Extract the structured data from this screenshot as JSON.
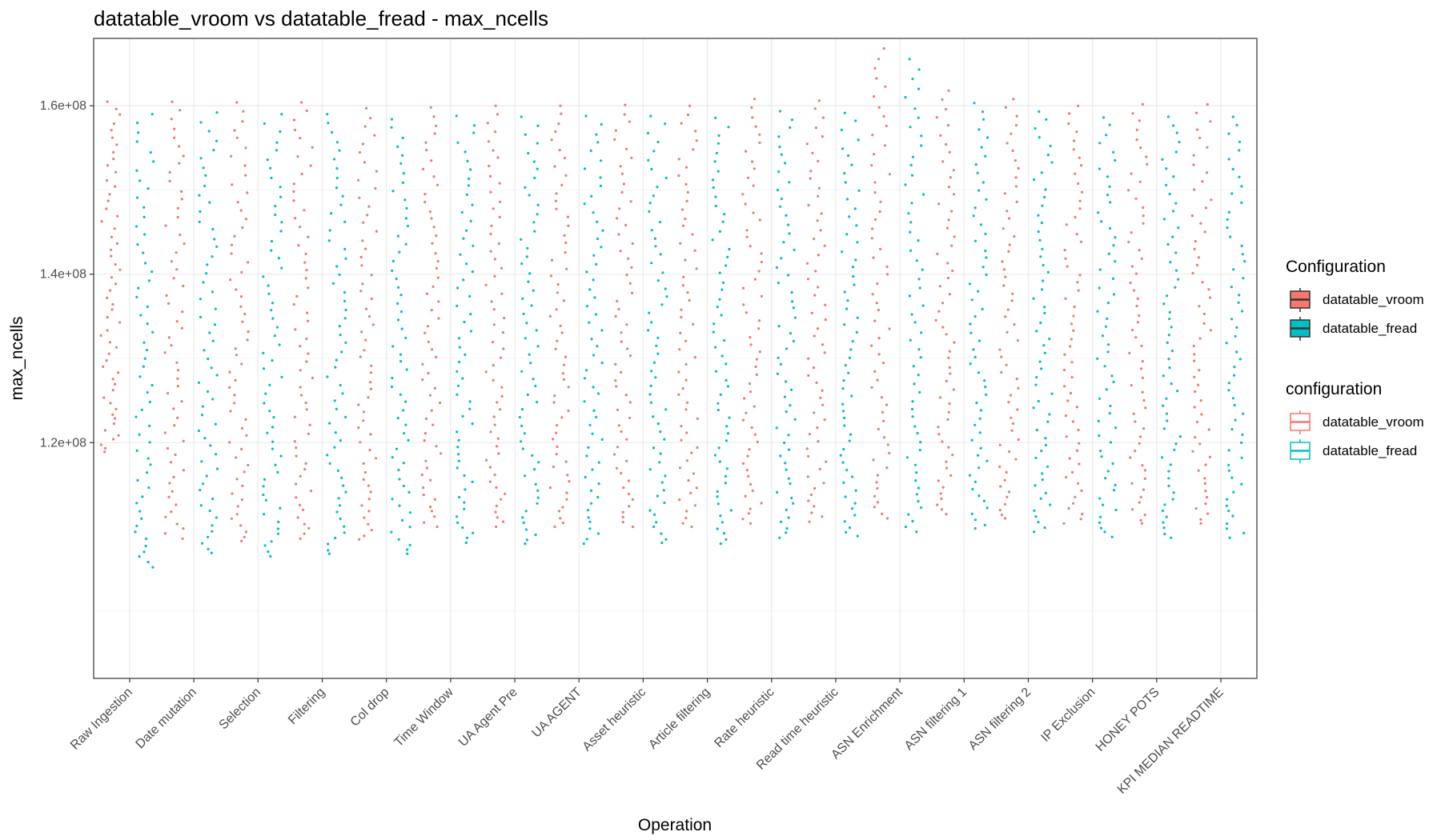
{
  "chart_data": {
    "type": "scatter",
    "title": "datatable_vroom vs datatable_fread - max_ncells",
    "xlabel": "Operation",
    "ylabel": "max_ncells",
    "categories": [
      "Raw Ingestion",
      "Date mutation",
      "Selection",
      "Filtering",
      "Col drop",
      "Time Window",
      "UA Agent Pre",
      "UA AGENT",
      "Asset heuristic",
      "Article filtering",
      "Rate heuristic",
      "Read time heuristic",
      "ASN Enrichment",
      "ASN filtering 1",
      "ASN filtering 2",
      "IP Exclusion",
      "HONEY POTS",
      "KPI MEDIAN READTIME"
    ],
    "ylim": [
      92000000,
      168000000
    ],
    "yticks": [
      120000000,
      140000000,
      160000000
    ],
    "ytick_labels": [
      "1.2e+08",
      "1.4e+08",
      "1.6e+08"
    ],
    "grid": true,
    "legend_position": "right",
    "series": [
      {
        "name": "datatable_vroom",
        "color": "#F8766D",
        "ranges": [
          [
            118900000,
            160600000
          ],
          [
            108600000,
            160600000
          ],
          [
            108300000,
            160400000
          ],
          [
            108600000,
            160400000
          ],
          [
            108500000,
            159700000
          ],
          [
            110000000,
            159800000
          ],
          [
            110000000,
            160000000
          ],
          [
            110000000,
            160000000
          ],
          [
            110000000,
            160100000
          ],
          [
            110000000,
            160000000
          ],
          [
            110400000,
            160800000
          ],
          [
            110600000,
            160600000
          ],
          [
            111000000,
            166800000
          ],
          [
            111500000,
            161800000
          ],
          [
            111000000,
            160800000
          ],
          [
            110400000,
            160000000
          ],
          [
            110400000,
            160200000
          ],
          [
            110400000,
            160200000
          ]
        ]
      },
      {
        "name": "datatable_fread",
        "color": "#00BFC4",
        "ranges": [
          [
            105200000,
            159000000
          ],
          [
            106900000,
            159200000
          ],
          [
            106500000,
            159000000
          ],
          [
            106800000,
            159000000
          ],
          [
            106800000,
            158400000
          ],
          [
            108100000,
            158800000
          ],
          [
            108000000,
            158700000
          ],
          [
            108000000,
            158800000
          ],
          [
            108100000,
            158800000
          ],
          [
            108000000,
            158600000
          ],
          [
            108700000,
            159400000
          ],
          [
            108900000,
            159200000
          ],
          [
            109400000,
            165600000
          ],
          [
            109800000,
            160400000
          ],
          [
            109400000,
            159400000
          ],
          [
            108800000,
            158700000
          ],
          [
            108700000,
            158800000
          ],
          [
            108700000,
            158800000
          ]
        ]
      }
    ]
  },
  "legend": {
    "fill_title": "Configuration",
    "fill_items": [
      "datatable_vroom",
      "datatable_fread"
    ],
    "color_title": "configuration",
    "color_items": [
      "datatable_vroom",
      "datatable_fread"
    ]
  }
}
